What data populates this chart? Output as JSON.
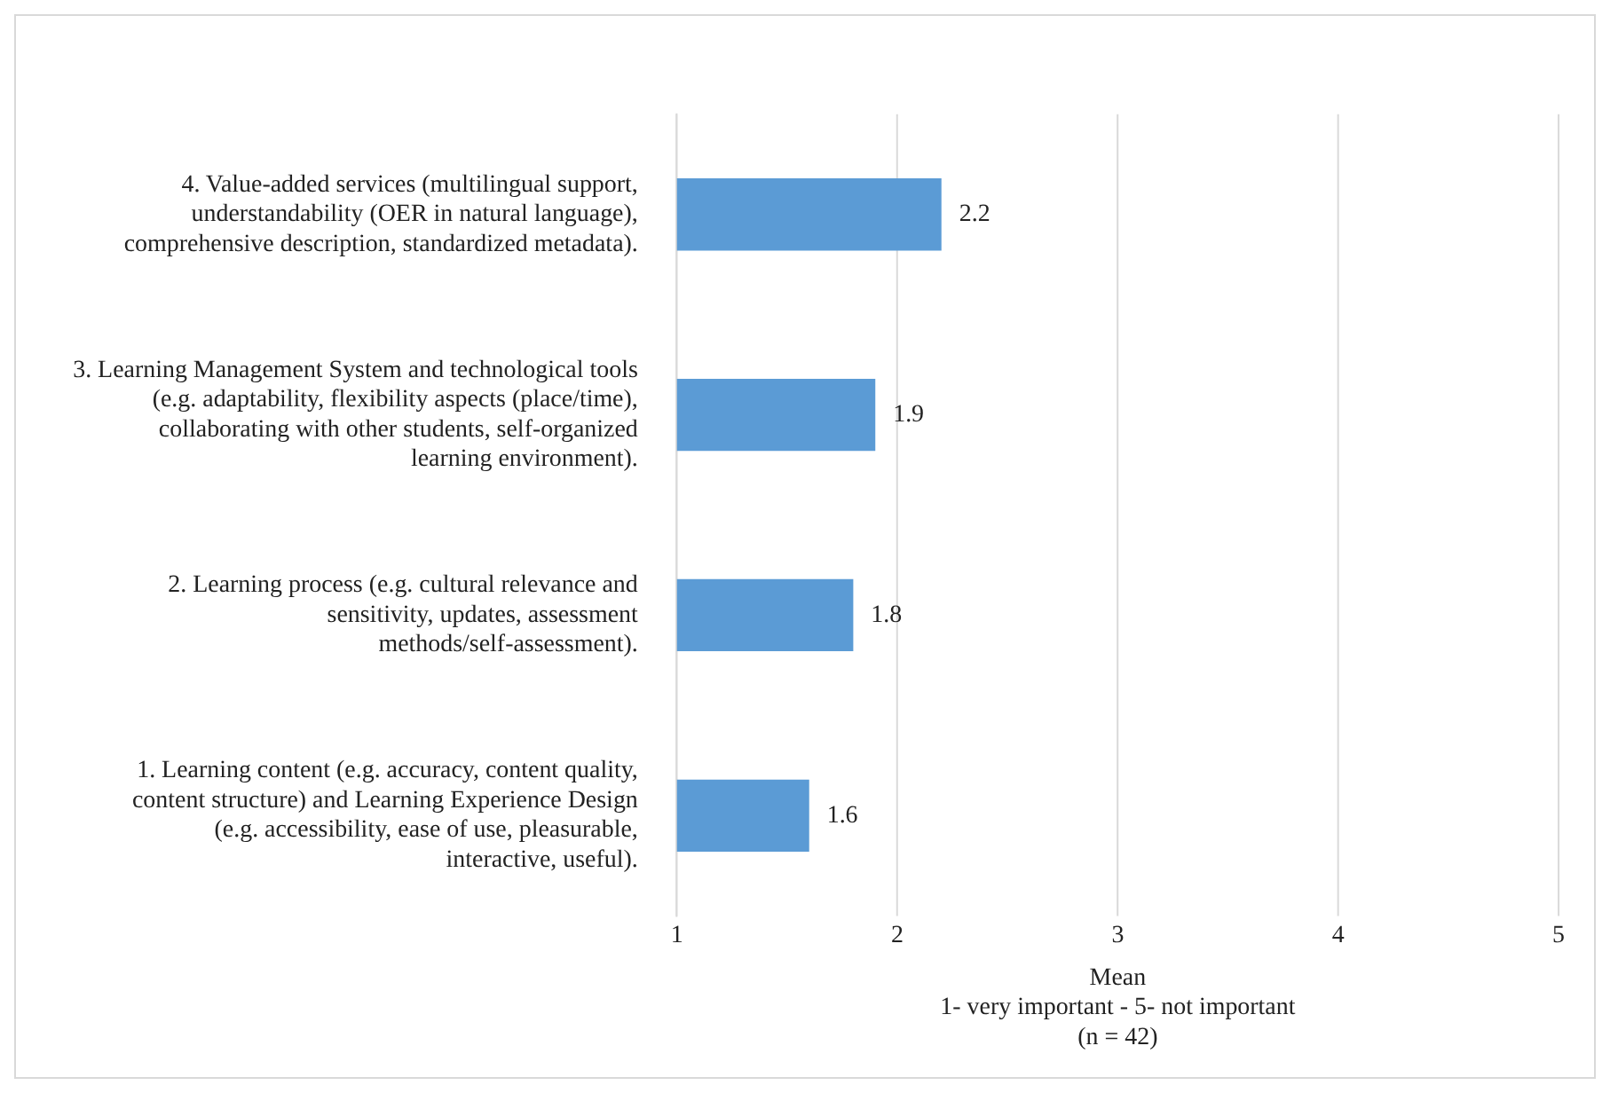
{
  "chart_data": {
    "type": "bar",
    "orientation": "horizontal",
    "categories": [
      "4. Value-added services (multilingual support, understandability (OER in natural language), comprehensive description, standardized metadata).",
      "3. Learning Management System and technological tools (e.g. adaptability, flexibility aspects (place/time), collaborating with other students, self-organized learning environment).",
      "2. Learning process (e.g. cultural relevance and sensitivity, updates, assessment methods/self-assessment).",
      "1. Learning content (e.g. accuracy, content quality, content structure) and Learning Experience Design (e.g. accessibility, ease of use, pleasurable, interactive, useful)."
    ],
    "values": [
      2.2,
      1.9,
      1.8,
      1.6
    ],
    "color": "#5b9bd5",
    "xlim": [
      1,
      5
    ],
    "xticks": [
      1,
      2,
      3,
      4,
      5
    ],
    "grid": "x",
    "data_labels": true,
    "xlabel": "Mean\n1- very important - 5- not important\n(n = 42)"
  }
}
